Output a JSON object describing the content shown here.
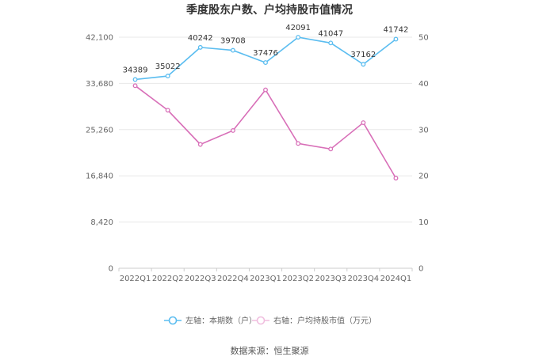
{
  "chart_data": {
    "type": "line",
    "title": "季度股东户数、户均持股市值情况",
    "categories": [
      "2022Q1",
      "2022Q2",
      "2022Q3",
      "2022Q4",
      "2023Q1",
      "2023Q2",
      "2023Q3",
      "2023Q4",
      "2024Q1"
    ],
    "y_left": {
      "ticks": [
        "0",
        "8,420",
        "16,840",
        "25,260",
        "33,680",
        "42,100"
      ],
      "ylim": [
        0,
        42100
      ]
    },
    "y_right": {
      "ticks": [
        "0",
        "10",
        "20",
        "30",
        "40",
        "50"
      ],
      "ylim": [
        0,
        50
      ]
    },
    "series": [
      {
        "name": "左轴：本期数（户）",
        "axis": "left",
        "color": "#5bbdf0",
        "values": [
          34389,
          35022,
          40242,
          39708,
          37476,
          42091,
          41047,
          37162,
          41742
        ],
        "labels": [
          "34389",
          "35022",
          "40242",
          "39708",
          "37476",
          "42091",
          "41047",
          "37162",
          "41742"
        ]
      },
      {
        "name": "右轴：户均持股市值（万元）",
        "axis": "right",
        "color": "#d86fb8",
        "values": [
          39.5,
          34.2,
          26.8,
          29.8,
          38.6,
          27.0,
          25.8,
          31.5,
          19.5
        ]
      }
    ],
    "grid": true,
    "legend_position": "bottom"
  },
  "source": "数据来源：恒生聚源"
}
